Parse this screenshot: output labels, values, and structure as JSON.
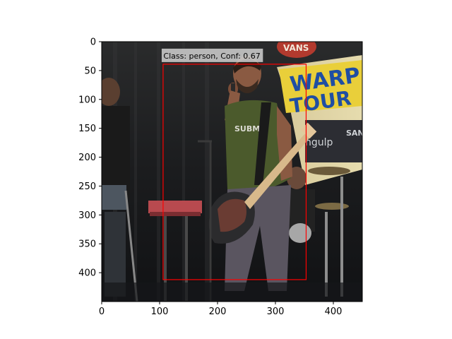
{
  "image": {
    "description_source_width": 450,
    "description_source_height": 450
  },
  "axes": {
    "x_ticks": [
      0,
      100,
      200,
      300,
      400
    ],
    "y_ticks": [
      0,
      50,
      100,
      150,
      200,
      250,
      300,
      350,
      400
    ],
    "xlim": [
      0,
      450
    ],
    "ylim": [
      450,
      0
    ]
  },
  "detection": {
    "label": "Class: person, Conf: 0.67",
    "box": {
      "x1": 106,
      "y1": 39,
      "x2": 353,
      "y2": 412
    },
    "box_color": "#ff0000",
    "label_bg": "#c8c8c8"
  },
  "scene": {
    "banner_text_top": "VANS",
    "banner_text_main": "WARP",
    "banner_text_main2": "TOUR",
    "banner_text_side": "ngulp",
    "banner_text_side2": "SAN",
    "shirt_text": "SUBMA"
  }
}
